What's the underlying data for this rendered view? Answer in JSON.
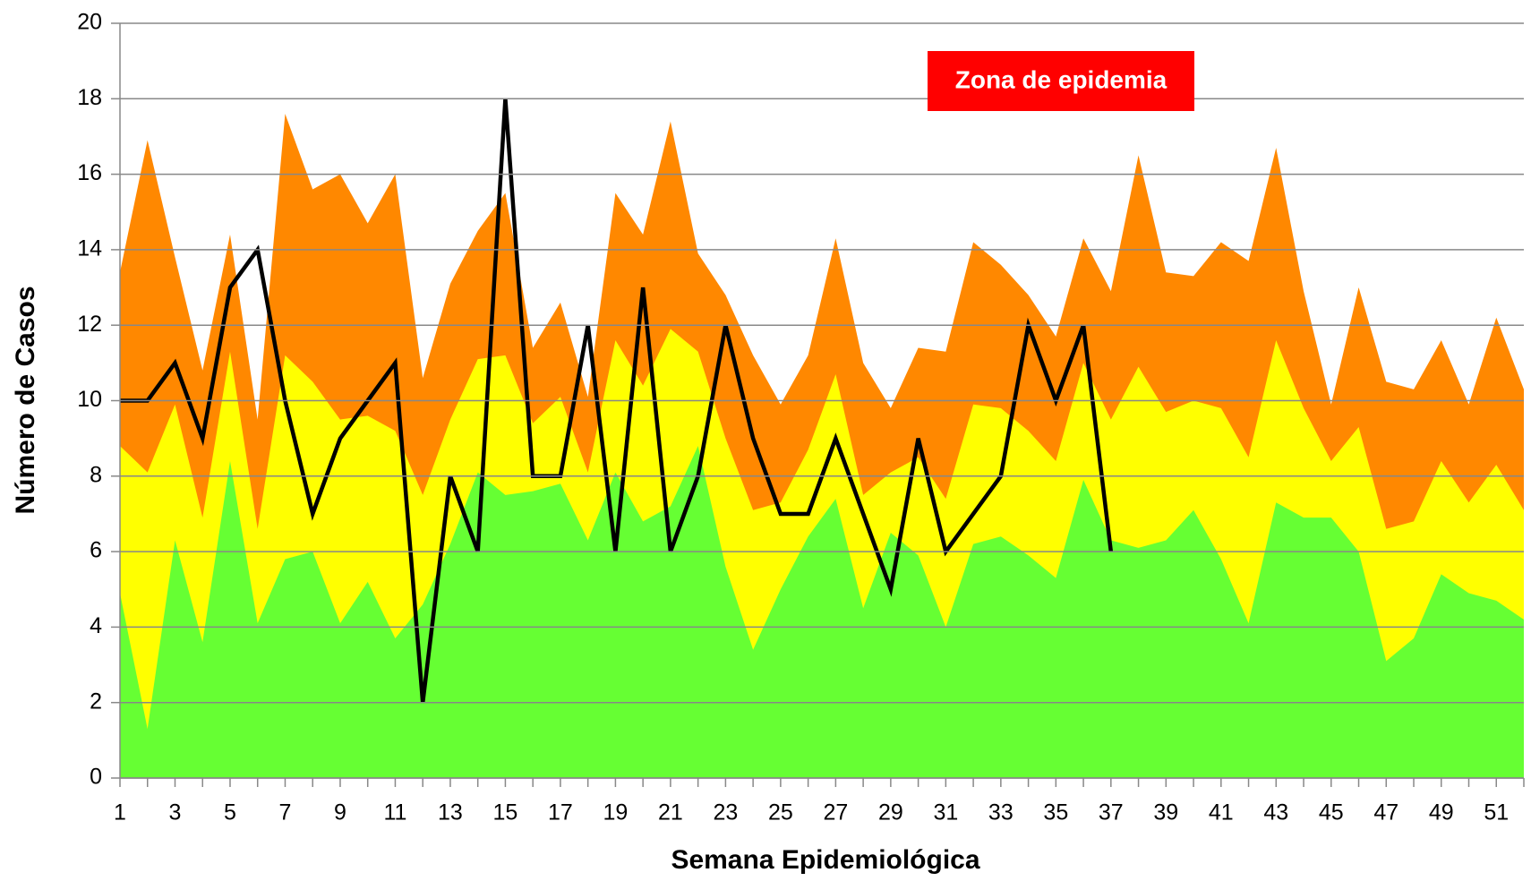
{
  "chart_data": {
    "type": "area",
    "annotation": "Zona de epidemia",
    "xlabel": "Semana Epidemiológica",
    "ylabel": "Número de Casos",
    "x": [
      1,
      2,
      3,
      4,
      5,
      6,
      7,
      8,
      9,
      10,
      11,
      12,
      13,
      14,
      15,
      16,
      17,
      18,
      19,
      20,
      21,
      22,
      23,
      24,
      25,
      26,
      27,
      28,
      29,
      30,
      31,
      32,
      33,
      34,
      35,
      36,
      37,
      38,
      39,
      40,
      41,
      42,
      43,
      44,
      45,
      46,
      47,
      48,
      49,
      50,
      51,
      52
    ],
    "xlim": [
      1,
      52
    ],
    "xticks": [
      1,
      3,
      5,
      7,
      9,
      11,
      13,
      15,
      17,
      19,
      21,
      23,
      25,
      27,
      29,
      31,
      33,
      35,
      37,
      39,
      41,
      43,
      45,
      47,
      49,
      51
    ],
    "ylim": [
      0,
      20
    ],
    "yticks": [
      0,
      2,
      4,
      6,
      8,
      10,
      12,
      14,
      16,
      18,
      20
    ],
    "grid": true,
    "series": [
      {
        "type": "area",
        "color": "#ff8800",
        "values": [
          13.4,
          16.9,
          13.8,
          10.8,
          14.4,
          9.5,
          17.6,
          15.6,
          16.0,
          14.7,
          16.0,
          10.6,
          13.1,
          14.5,
          15.5,
          11.4,
          12.6,
          10.1,
          15.5,
          14.4,
          17.4,
          13.9,
          12.8,
          11.2,
          9.9,
          11.2,
          14.3,
          11.0,
          9.8,
          11.4,
          11.3,
          14.2,
          13.6,
          12.8,
          11.7,
          14.3,
          12.9,
          16.5,
          13.4,
          13.3,
          14.2,
          13.7,
          16.7,
          12.9,
          9.9,
          13.0,
          10.5,
          10.3,
          11.6,
          9.9,
          12.2,
          10.3
        ]
      },
      {
        "type": "area",
        "color": "#ffff00",
        "values": [
          8.8,
          8.1,
          9.9,
          6.9,
          11.3,
          6.6,
          11.2,
          10.5,
          9.5,
          9.6,
          9.2,
          7.5,
          9.5,
          11.1,
          11.2,
          9.4,
          10.1,
          8.1,
          11.6,
          10.4,
          11.9,
          11.3,
          9.0,
          7.1,
          7.3,
          8.7,
          10.7,
          7.5,
          8.1,
          8.5,
          7.4,
          9.9,
          9.8,
          9.2,
          8.4,
          11.0,
          9.5,
          10.9,
          9.7,
          10.0,
          9.8,
          8.5,
          11.6,
          9.8,
          8.4,
          9.3,
          6.6,
          6.8,
          8.4,
          7.3,
          8.3,
          7.1
        ]
      },
      {
        "type": "area",
        "color": "#66ff33",
        "values": [
          4.9,
          1.3,
          6.3,
          3.6,
          8.4,
          4.1,
          5.8,
          6.0,
          4.1,
          5.2,
          3.7,
          4.6,
          6.2,
          8.1,
          7.5,
          7.6,
          7.8,
          6.3,
          8.1,
          6.8,
          7.2,
          8.8,
          5.6,
          3.4,
          5.0,
          6.4,
          7.4,
          4.5,
          6.5,
          5.9,
          4.0,
          6.2,
          6.4,
          5.9,
          5.3,
          7.9,
          6.3,
          6.1,
          6.3,
          7.1,
          5.8,
          4.1,
          7.3,
          6.9,
          6.9,
          6.0,
          3.1,
          3.7,
          5.4,
          4.9,
          4.7,
          4.2
        ]
      },
      {
        "type": "line",
        "color": "#000000",
        "values": [
          10,
          10,
          11,
          9,
          13,
          14,
          10,
          7,
          9,
          10,
          11,
          2,
          8,
          6,
          18,
          8,
          8,
          12,
          6,
          13,
          6,
          8,
          12,
          9,
          7,
          7,
          9,
          7,
          5,
          9,
          6,
          7,
          8,
          12,
          10,
          12,
          6,
          null,
          null,
          null,
          null,
          null,
          null,
          null,
          null,
          null,
          null,
          null,
          null,
          null,
          null,
          null
        ]
      }
    ]
  }
}
